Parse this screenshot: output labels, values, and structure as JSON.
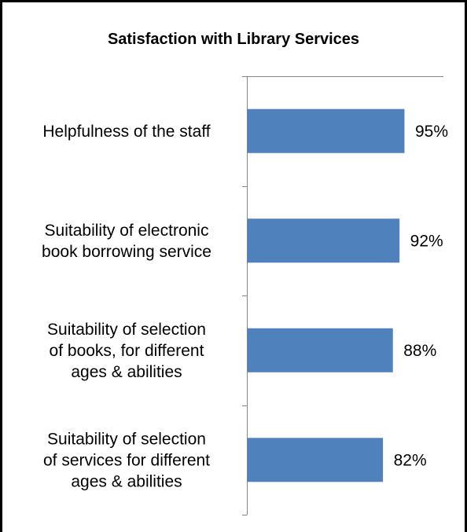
{
  "chart_data": {
    "type": "bar",
    "orientation": "horizontal",
    "title": "Satisfaction with Library Services",
    "xlabel": "",
    "ylabel": "",
    "xlim": [
      0,
      100
    ],
    "grid": false,
    "legend": "none",
    "categories": [
      "Helpfulness of the staff",
      "Suitability of electronic book borrowing service",
      "Suitability of selection of books, for different ages & abilities",
      "Suitability of selection of services for different ages & abilities"
    ],
    "category_lines": [
      [
        "Helpfulness of the staff"
      ],
      [
        "Suitability of electronic",
        "book borrowing service"
      ],
      [
        "Suitability of selection",
        "of books, for different",
        "ages & abilities"
      ],
      [
        "Suitability of selection",
        "of services for different",
        "ages & abilities"
      ]
    ],
    "values": [
      95,
      92,
      88,
      82
    ],
    "data_labels": [
      "95%",
      "92%",
      "88%",
      "82%"
    ],
    "colors": {
      "bar": "#4F81BD",
      "axis": "#868686",
      "border": "#000000"
    }
  }
}
